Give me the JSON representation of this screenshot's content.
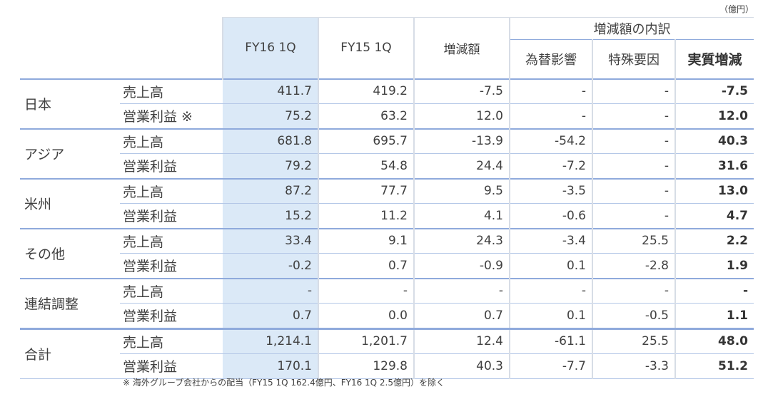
{
  "unit_label": "（億円）",
  "header": {
    "col_fy16": "FY16 1Q",
    "col_fy15": "FY15 1Q",
    "col_change": "増減額",
    "group_breakdown": "増減額の内訳",
    "col_fx": "為替影響",
    "col_special": "特殊要因",
    "col_real": "実質増減"
  },
  "regions": [
    {
      "name": "日本",
      "rows": [
        {
          "item": "売上高",
          "fy16": "411.7",
          "fy15": "419.2",
          "change": "-7.5",
          "fx": "-",
          "special": "-",
          "real": "-7.5"
        },
        {
          "item": "営業利益 ※",
          "fy16": "75.2",
          "fy15": "63.2",
          "change": "12.0",
          "fx": "-",
          "special": "-",
          "real": "12.0"
        }
      ]
    },
    {
      "name": "アジア",
      "rows": [
        {
          "item": "売上高",
          "fy16": "681.8",
          "fy15": "695.7",
          "change": "-13.9",
          "fx": "-54.2",
          "special": "-",
          "real": "40.3"
        },
        {
          "item": "営業利益",
          "fy16": "79.2",
          "fy15": "54.8",
          "change": "24.4",
          "fx": "-7.2",
          "special": "-",
          "real": "31.6"
        }
      ]
    },
    {
      "name": "米州",
      "rows": [
        {
          "item": "売上高",
          "fy16": "87.2",
          "fy15": "77.7",
          "change": "9.5",
          "fx": "-3.5",
          "special": "-",
          "real": "13.0"
        },
        {
          "item": "営業利益",
          "fy16": "15.2",
          "fy15": "11.2",
          "change": "4.1",
          "fx": "-0.6",
          "special": "-",
          "real": "4.7"
        }
      ]
    },
    {
      "name": "その他",
      "rows": [
        {
          "item": "売上高",
          "fy16": "33.4",
          "fy15": "9.1",
          "change": "24.3",
          "fx": "-3.4",
          "special": "25.5",
          "real": "2.2"
        },
        {
          "item": "営業利益",
          "fy16": "-0.2",
          "fy15": "0.7",
          "change": "-0.9",
          "fx": "0.1",
          "special": "-2.8",
          "real": "1.9"
        }
      ]
    },
    {
      "name": "連結調整",
      "rows": [
        {
          "item": "売上高",
          "fy16": "-",
          "fy15": "-",
          "change": "-",
          "fx": "-",
          "special": "-",
          "real": "-"
        },
        {
          "item": "営業利益",
          "fy16": "0.7",
          "fy15": "0.0",
          "change": "0.7",
          "fx": "0.1",
          "special": "-0.5",
          "real": "1.1"
        }
      ]
    },
    {
      "name": "合計",
      "rows": [
        {
          "item": "売上高",
          "fy16": "1,214.1",
          "fy15": "1,201.7",
          "change": "12.4",
          "fx": "-61.1",
          "special": "25.5",
          "real": "48.0"
        },
        {
          "item": "営業利益",
          "fy16": "170.1",
          "fy15": "129.8",
          "change": "40.3",
          "fx": "-7.7",
          "special": "-3.3",
          "real": "51.2"
        }
      ]
    }
  ],
  "footnote": "※ 海外グループ会社からの配当（FY15 1Q 162.4億円、FY16 1Q 2.5億円）を除く"
}
